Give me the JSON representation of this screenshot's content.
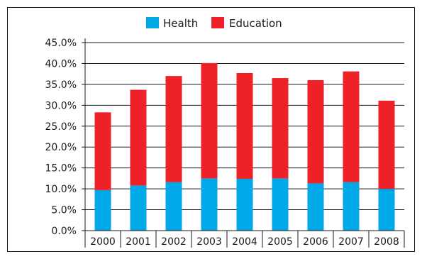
{
  "chart_data": {
    "type": "bar",
    "stacked": true,
    "categories": [
      "2000",
      "2001",
      "2002",
      "2003",
      "2004",
      "2005",
      "2006",
      "2007",
      "2008"
    ],
    "series": [
      {
        "name": "Health",
        "color": "#00a8e8",
        "values": [
          9.7,
          10.8,
          11.6,
          12.5,
          12.4,
          12.5,
          11.3,
          11.6,
          10.0
        ]
      },
      {
        "name": "Education",
        "color": "#ee2028",
        "values": [
          18.6,
          22.9,
          25.4,
          27.6,
          25.3,
          24.0,
          24.7,
          26.5,
          21.1
        ]
      }
    ],
    "ylim": [
      0,
      45
    ],
    "yticks": [
      "0.0%",
      "5.0%",
      "10.0%",
      "15.0%",
      "20.0%",
      "25.0%",
      "30.0%",
      "35.0%",
      "40.0%",
      "45.0%"
    ],
    "ytick_values": [
      0,
      5,
      10,
      15,
      20,
      25,
      30,
      35,
      40,
      45
    ],
    "grid": true,
    "legend_position": "top-center",
    "title": "",
    "xlabel": "",
    "ylabel": ""
  }
}
